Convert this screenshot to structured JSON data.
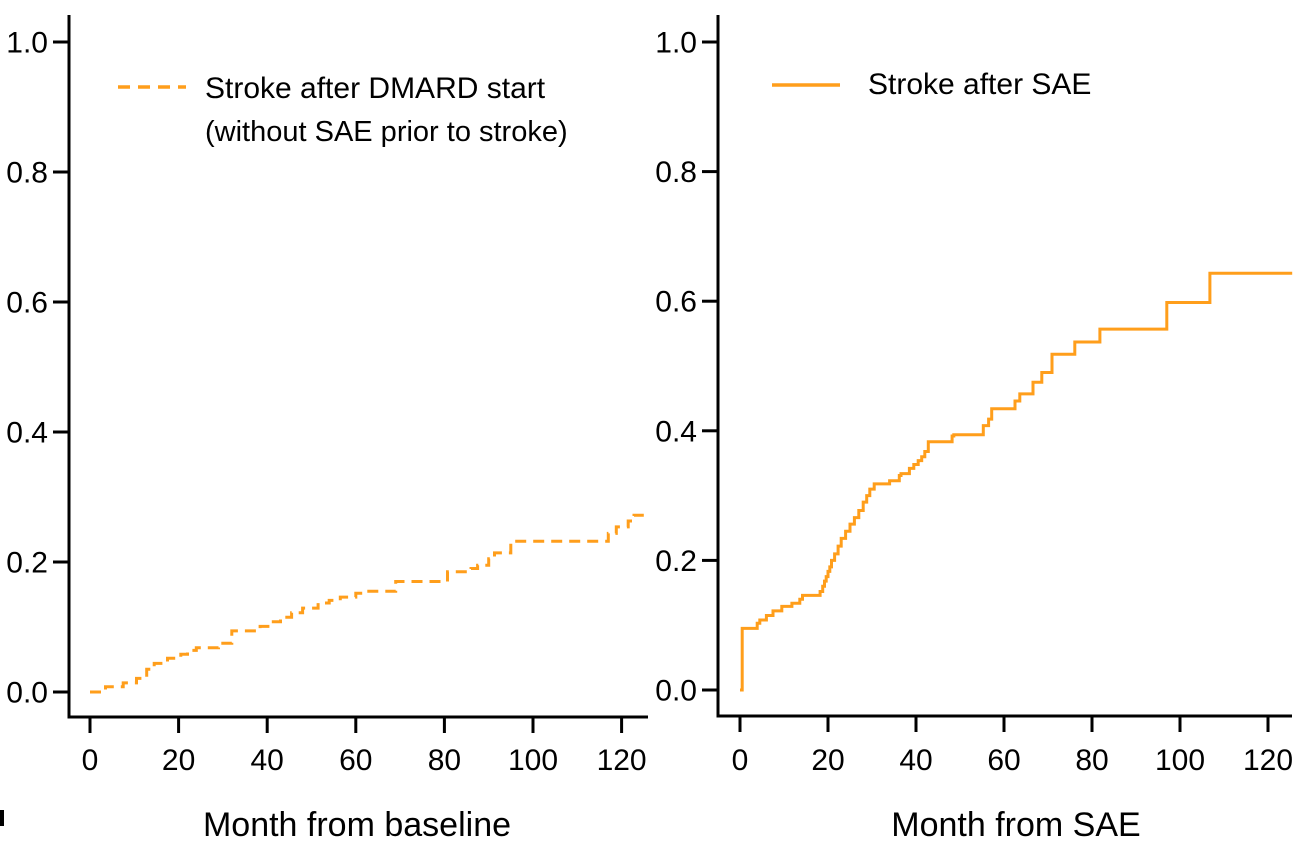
{
  "figure": {
    "background": "#ffffff",
    "axis_color": "#000000",
    "accent_color": "#FF9E1B"
  },
  "chart_data": [
    {
      "type": "line",
      "panel": "stroke-after-dmard",
      "line_style": "dashed",
      "color": "#FF9E1B",
      "legend_label": "Stroke after DMARD start",
      "legend_sublabel": "(without SAE prior to stroke)",
      "xlabel": "Month from baseline",
      "xlim": [
        0,
        125
      ],
      "ylim": [
        0.0,
        1.0
      ],
      "x_ticks": [
        0,
        20,
        40,
        60,
        80,
        100,
        120
      ],
      "y_tick_labels": [
        "0.0",
        "0.2",
        "0.4",
        "0.6",
        "0.8",
        "1.0"
      ],
      "points": [
        [
          0,
          0
        ],
        [
          3.5,
          0.008
        ],
        [
          7.5,
          0.014
        ],
        [
          10.5,
          0.021
        ],
        [
          12.8,
          0.035
        ],
        [
          14.5,
          0.044
        ],
        [
          17.5,
          0.052
        ],
        [
          20.5,
          0.058
        ],
        [
          22,
          0.064
        ],
        [
          24,
          0.068
        ],
        [
          29,
          0.075
        ],
        [
          32,
          0.094
        ],
        [
          38.4,
          0.101
        ],
        [
          41,
          0.108
        ],
        [
          43,
          0.115
        ],
        [
          45.5,
          0.122
        ],
        [
          48,
          0.129
        ],
        [
          51.5,
          0.137
        ],
        [
          54,
          0.141
        ],
        [
          56.5,
          0.146
        ],
        [
          60,
          0.152
        ],
        [
          61.5,
          0.155
        ],
        [
          69,
          0.17
        ],
        [
          80.7,
          0.185
        ],
        [
          86,
          0.19
        ],
        [
          87.5,
          0.195
        ],
        [
          90,
          0.205
        ],
        [
          91.3,
          0.214
        ],
        [
          95,
          0.232
        ],
        [
          117,
          0.244
        ],
        [
          118.8,
          0.254
        ],
        [
          121.5,
          0.263
        ],
        [
          122.8,
          0.272
        ],
        [
          125,
          0.272
        ]
      ]
    },
    {
      "type": "line",
      "panel": "stroke-after-sae",
      "line_style": "solid",
      "color": "#FF9E1B",
      "legend_label": "Stroke after SAE",
      "legend_sublabel": "",
      "xlabel": "Month from SAE",
      "xlim": [
        0,
        125
      ],
      "ylim": [
        0.0,
        1.0
      ],
      "x_ticks": [
        0,
        20,
        40,
        60,
        80,
        100,
        120
      ],
      "y_tick_labels": [
        "0.0",
        "0.2",
        "0.4",
        "0.6",
        "0.8",
        "1.0"
      ],
      "points": [
        [
          0,
          0
        ],
        [
          0.5,
          0.095
        ],
        [
          3.9,
          0.103
        ],
        [
          4.5,
          0.108
        ],
        [
          6,
          0.115
        ],
        [
          7.5,
          0.122
        ],
        [
          9.5,
          0.129
        ],
        [
          11.8,
          0.134
        ],
        [
          13.6,
          0.14
        ],
        [
          14.2,
          0.146
        ],
        [
          18.2,
          0.152
        ],
        [
          18.8,
          0.16
        ],
        [
          19.2,
          0.168
        ],
        [
          19.6,
          0.175
        ],
        [
          20,
          0.183
        ],
        [
          20.4,
          0.19
        ],
        [
          20.8,
          0.2
        ],
        [
          21.5,
          0.21
        ],
        [
          22.3,
          0.222
        ],
        [
          23,
          0.234
        ],
        [
          24,
          0.245
        ],
        [
          25,
          0.256
        ],
        [
          26,
          0.266
        ],
        [
          27,
          0.277
        ],
        [
          28,
          0.29
        ],
        [
          28.8,
          0.3
        ],
        [
          29.5,
          0.31
        ],
        [
          30.5,
          0.318
        ],
        [
          34,
          0.323
        ],
        [
          36.2,
          0.331
        ],
        [
          36.6,
          0.334
        ],
        [
          38.5,
          0.342
        ],
        [
          39.5,
          0.348
        ],
        [
          40.5,
          0.354
        ],
        [
          41.3,
          0.36
        ],
        [
          42,
          0.368
        ],
        [
          42.8,
          0.383
        ],
        [
          48.2,
          0.392
        ],
        [
          48.6,
          0.394
        ],
        [
          55.3,
          0.408
        ],
        [
          56.5,
          0.418
        ],
        [
          57.2,
          0.434
        ],
        [
          62.5,
          0.446
        ],
        [
          63.6,
          0.457
        ],
        [
          66.6,
          0.475
        ],
        [
          68.6,
          0.49
        ],
        [
          70.9,
          0.518
        ],
        [
          76.1,
          0.537
        ],
        [
          81.8,
          0.557
        ],
        [
          97,
          0.598
        ],
        [
          106.8,
          0.643
        ],
        [
          125.5,
          0.643
        ]
      ]
    }
  ]
}
